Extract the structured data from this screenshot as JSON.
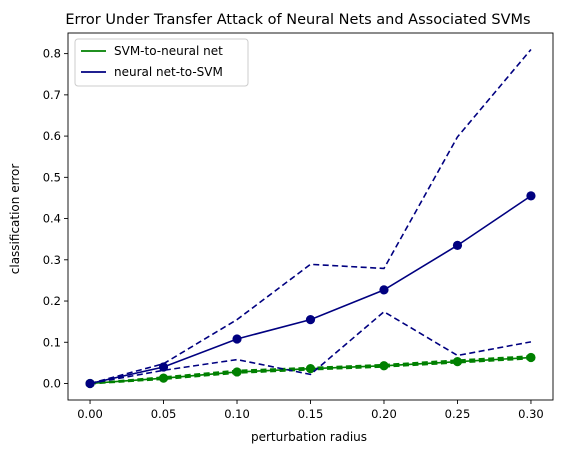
{
  "chart_data": {
    "type": "line",
    "title": "Error Under Transfer Attack of Neural Nets and Associated SVMs",
    "xlabel": "perturbation radius",
    "ylabel": "classification error",
    "x": [
      0.0,
      0.05,
      0.1,
      0.15,
      0.2,
      0.25,
      0.3
    ],
    "x_tick_labels": [
      "0.00",
      "0.05",
      "0.10",
      "0.15",
      "0.20",
      "0.25",
      "0.30"
    ],
    "y_ticks": [
      0.0,
      0.1,
      0.2,
      0.3,
      0.4,
      0.5,
      0.6,
      0.7,
      0.8
    ],
    "y_tick_labels": [
      "0.0",
      "0.1",
      "0.2",
      "0.3",
      "0.4",
      "0.5",
      "0.6",
      "0.7",
      "0.8"
    ],
    "xlim": [
      -0.015,
      0.315
    ],
    "ylim": [
      -0.04,
      0.85
    ],
    "grid": false,
    "legend_position": "top-left",
    "series": [
      {
        "name": "SVM-to-neural net",
        "color": "#008000",
        "values": [
          0.0,
          0.013,
          0.028,
          0.036,
          0.043,
          0.053,
          0.063
        ],
        "upper": [
          0.0,
          0.015,
          0.031,
          0.038,
          0.045,
          0.056,
          0.066
        ],
        "lower": [
          0.0,
          0.011,
          0.026,
          0.034,
          0.041,
          0.051,
          0.061
        ]
      },
      {
        "name": "neural net-to-SVM",
        "color": "#000080",
        "values": [
          0.0,
          0.04,
          0.108,
          0.155,
          0.227,
          0.335,
          0.455
        ],
        "upper": [
          0.0,
          0.048,
          0.155,
          0.289,
          0.279,
          0.598,
          0.81
        ],
        "lower": [
          0.0,
          0.032,
          0.058,
          0.022,
          0.174,
          0.068,
          0.101
        ]
      }
    ]
  }
}
